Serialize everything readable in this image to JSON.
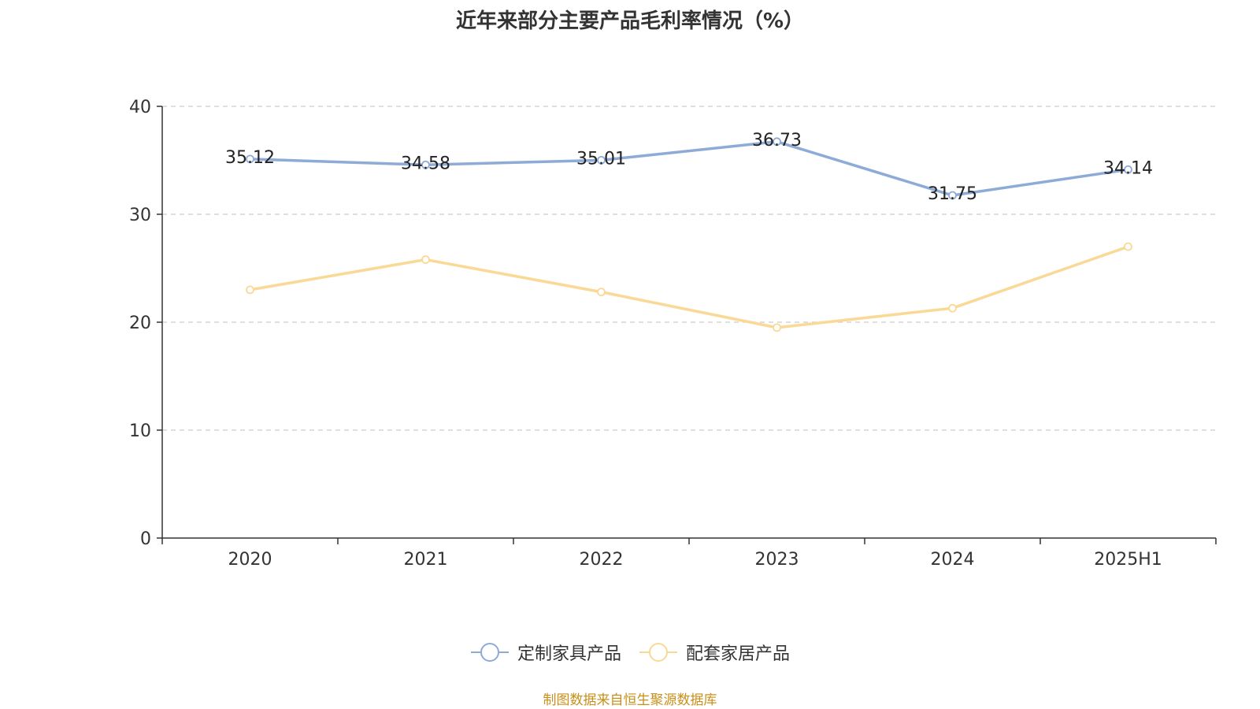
{
  "chart_data": {
    "type": "line",
    "title": "近年来部分主要产品毛利率情况（%）",
    "categories": [
      "2020",
      "2021",
      "2022",
      "2023",
      "2024",
      "2025H1"
    ],
    "ylim": [
      0,
      40
    ],
    "yticks": [
      0,
      10,
      20,
      30,
      40
    ],
    "grid": true,
    "legend_position": "bottom",
    "series": [
      {
        "name": "定制家具产品",
        "color": "#8eabd8",
        "values": [
          35.12,
          34.58,
          35.01,
          36.73,
          31.75,
          34.14
        ],
        "labels": [
          "35.12",
          "34.58",
          "35.01",
          "36.73",
          "31.75",
          "34.14"
        ],
        "show_labels": true
      },
      {
        "name": "配套家居产品",
        "color": "#fad896",
        "values": [
          23.0,
          25.8,
          22.8,
          19.5,
          21.3,
          27.0
        ],
        "show_labels": false
      }
    ]
  },
  "source_note": "制图数据来自恒生聚源数据库"
}
